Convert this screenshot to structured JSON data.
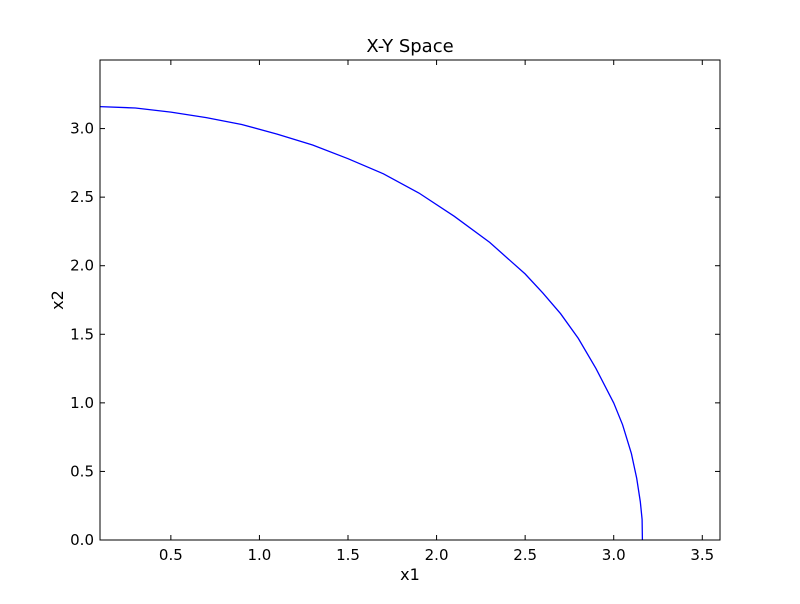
{
  "chart_data": {
    "type": "line",
    "title": "X-Y Space",
    "xlabel": "x1",
    "ylabel": "x2",
    "xlim": [
      0.1,
      3.6
    ],
    "ylim": [
      0.0,
      3.5
    ],
    "xticks": [
      0.5,
      1.0,
      1.5,
      2.0,
      2.5,
      3.0,
      3.5
    ],
    "xtick_labels": [
      "0.5",
      "1.0",
      "1.5",
      "2.0",
      "2.5",
      "3.0",
      "3.5"
    ],
    "yticks": [
      0.0,
      0.5,
      1.0,
      1.5,
      2.0,
      2.5,
      3.0
    ],
    "ytick_labels": [
      "0.0",
      "0.5",
      "1.0",
      "1.5",
      "2.0",
      "2.5",
      "3.0"
    ],
    "grid": false,
    "series": [
      {
        "color": "#0000ff",
        "x": [
          0.1,
          0.3,
          0.5,
          0.7,
          0.9,
          1.1,
          1.3,
          1.5,
          1.7,
          1.9,
          2.1,
          2.3,
          2.5,
          2.6,
          2.7,
          2.8,
          2.9,
          3.0,
          3.05,
          3.1,
          3.13,
          3.15,
          3.16,
          3.162
        ],
        "y": [
          3.16,
          3.15,
          3.12,
          3.08,
          3.03,
          2.96,
          2.88,
          2.78,
          2.67,
          2.53,
          2.36,
          2.17,
          1.94,
          1.8,
          1.65,
          1.47,
          1.25,
          1.0,
          0.84,
          0.63,
          0.45,
          0.28,
          0.15,
          0.0
        ]
      }
    ]
  }
}
